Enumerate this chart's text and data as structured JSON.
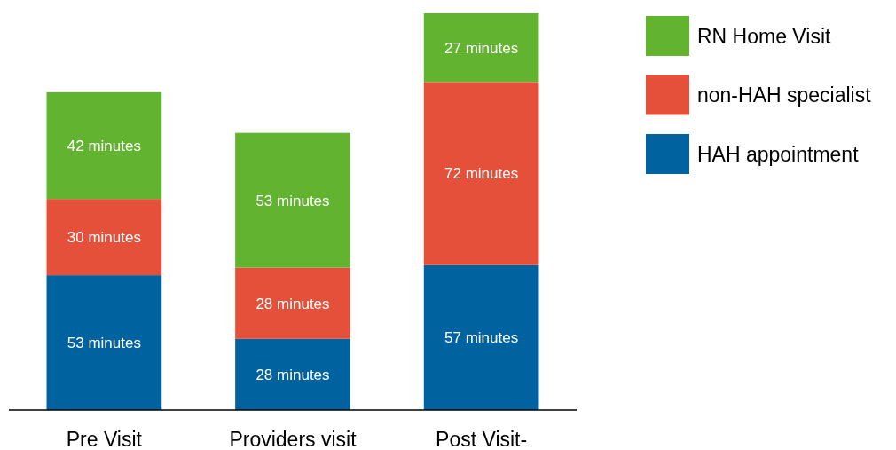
{
  "chart_data": {
    "type": "bar",
    "stacked": true,
    "categories": [
      "Pre Visit",
      "Providers visit",
      "Post Visit-"
    ],
    "series": [
      {
        "name": "HAH appointment",
        "color": "#0063a0",
        "values": [
          53,
          28,
          57
        ],
        "value_labels": [
          "53 minutes",
          "28 minutes",
          "57 minutes"
        ]
      },
      {
        "name": "non-HAH specialist",
        "color": "#e4503a",
        "values": [
          30,
          28,
          72
        ],
        "value_labels": [
          "30 minutes",
          "28 minutes",
          "72 minutes"
        ]
      },
      {
        "name": "RN Home Visit",
        "color": "#62b32f",
        "values": [
          42,
          53,
          27
        ],
        "value_labels": [
          "42 minutes",
          "53 minutes",
          "27 minutes"
        ]
      }
    ],
    "legend": "right"
  }
}
